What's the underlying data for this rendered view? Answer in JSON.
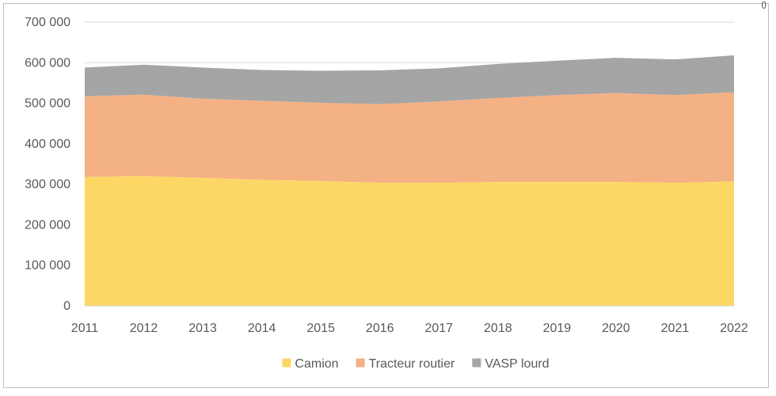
{
  "corner_mark": "()",
  "chart_data": {
    "type": "area",
    "stacked": true,
    "title": "",
    "xlabel": "",
    "ylabel": "",
    "x": [
      "2011",
      "2012",
      "2013",
      "2014",
      "2015",
      "2016",
      "2017",
      "2018",
      "2019",
      "2020",
      "2021",
      "2022"
    ],
    "ylim": [
      0,
      700000
    ],
    "yticks": [
      0,
      100000,
      200000,
      300000,
      400000,
      500000,
      600000,
      700000
    ],
    "ytick_labels": [
      "0",
      "100 000",
      "200 000",
      "300 000",
      "400 000",
      "500 000",
      "600 000",
      "700 000"
    ],
    "grid": true,
    "legend_position": "bottom",
    "series": [
      {
        "name": "Camion",
        "color": "#fdd766",
        "values": [
          318000,
          320000,
          316000,
          311000,
          308000,
          304000,
          304000,
          306000,
          306000,
          306000,
          304000,
          307000
        ]
      },
      {
        "name": "Tracteur routier",
        "color": "#f4b183",
        "values": [
          199000,
          201000,
          195000,
          195000,
          193000,
          194000,
          200000,
          207000,
          214000,
          219000,
          216000,
          220000
        ]
      },
      {
        "name": "VASP lourd",
        "color": "#a5a5a5",
        "values": [
          71000,
          74000,
          77000,
          76000,
          79000,
          83000,
          82000,
          84000,
          85000,
          87000,
          88000,
          91000
        ]
      }
    ]
  }
}
